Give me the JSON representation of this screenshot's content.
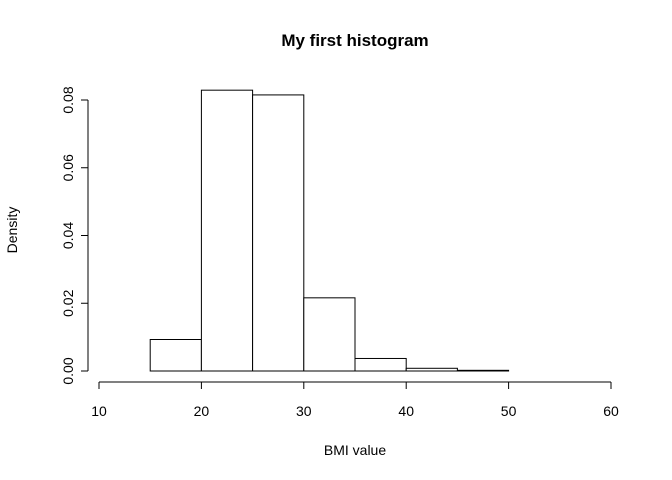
{
  "chart_data": {
    "type": "bar",
    "title": "My first histogram",
    "xlabel": "BMI value",
    "ylabel": "Density",
    "bins": [
      {
        "start": 10,
        "end": 15,
        "value": 0.0
      },
      {
        "start": 15,
        "end": 20,
        "value": 0.0093
      },
      {
        "start": 20,
        "end": 25,
        "value": 0.0829
      },
      {
        "start": 25,
        "end": 30,
        "value": 0.0815
      },
      {
        "start": 30,
        "end": 35,
        "value": 0.0216
      },
      {
        "start": 35,
        "end": 40,
        "value": 0.0037
      },
      {
        "start": 40,
        "end": 45,
        "value": 0.0008
      },
      {
        "start": 45,
        "end": 50,
        "value": 0.0002
      },
      {
        "start": 50,
        "end": 55,
        "value": 0.0
      },
      {
        "start": 55,
        "end": 60,
        "value": 0.0
      }
    ],
    "xlim": [
      10,
      60
    ],
    "ylim": [
      0,
      0.08
    ],
    "x_ticks": [
      "10",
      "20",
      "30",
      "40",
      "50",
      "60"
    ],
    "x_tick_values": [
      10,
      20,
      30,
      40,
      50,
      60
    ],
    "y_ticks": [
      "0.00",
      "0.02",
      "0.04",
      "0.06",
      "0.08"
    ],
    "y_tick_values": [
      0,
      0.02,
      0.04,
      0.06,
      0.08
    ],
    "grid": false,
    "bar_fill": "#ffffff",
    "bar_stroke": "#000000"
  }
}
